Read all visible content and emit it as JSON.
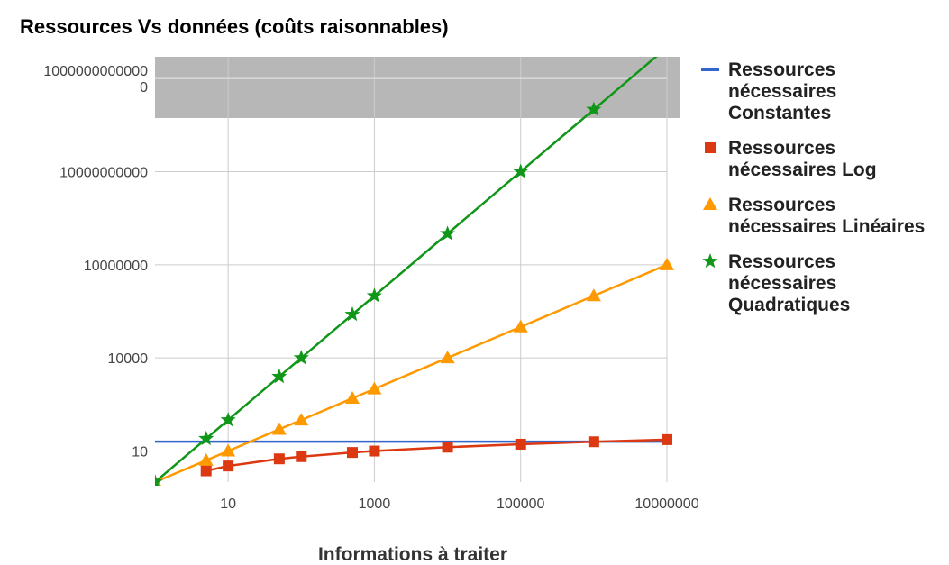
{
  "chart_data": {
    "type": "line",
    "title": "Ressources Vs données (coûts raisonnables)",
    "xlabel": "Informations à traiter",
    "ylabel": "",
    "x_scale": "log",
    "y_scale": "log",
    "xlim": [
      1,
      10000000
    ],
    "ylim": [
      1,
      50000000000000
    ],
    "x_ticks": [
      "10",
      "1000",
      "100000",
      "10000000"
    ],
    "y_ticks": [
      "10",
      "10000",
      "10000000",
      "10000000000",
      "1000000000000",
      "0"
    ],
    "grid": true,
    "legend_position": "right",
    "series": [
      {
        "name": "Ressources nécessaires Constantes",
        "color": "#3366cc",
        "marker": "none",
        "x": [
          1,
          10000000
        ],
        "y": [
          20,
          20
        ]
      },
      {
        "name": "Ressources nécessaires Log",
        "color": "#dc3912",
        "marker": "square",
        "x": [
          5,
          10,
          50,
          100,
          500,
          1000,
          10000,
          100000,
          1000000,
          10000000
        ],
        "y": [
          2.3,
          3.3,
          5.6,
          6.6,
          9.0,
          10,
          13.3,
          16.6,
          19.9,
          23.3
        ]
      },
      {
        "name": "Ressources nécessaires Linéaires",
        "color": "#ff9900",
        "marker": "triangle",
        "x": [
          1,
          5,
          10,
          50,
          100,
          500,
          1000,
          10000,
          100000,
          1000000,
          10000000
        ],
        "y": [
          1,
          5,
          10,
          50,
          100,
          500,
          1000,
          10000,
          100000,
          1000000,
          10000000
        ]
      },
      {
        "name": "Ressources nécessaires Quadratiques",
        "color": "#109618",
        "marker": "star",
        "x": [
          1,
          5,
          10,
          50,
          100,
          500,
          1000,
          10000,
          100000,
          1000000,
          10000000
        ],
        "y": [
          1,
          25,
          100,
          2500,
          10000,
          250000,
          1000000,
          100000000,
          10000000000,
          1000000000000,
          100000000000000
        ]
      }
    ]
  }
}
